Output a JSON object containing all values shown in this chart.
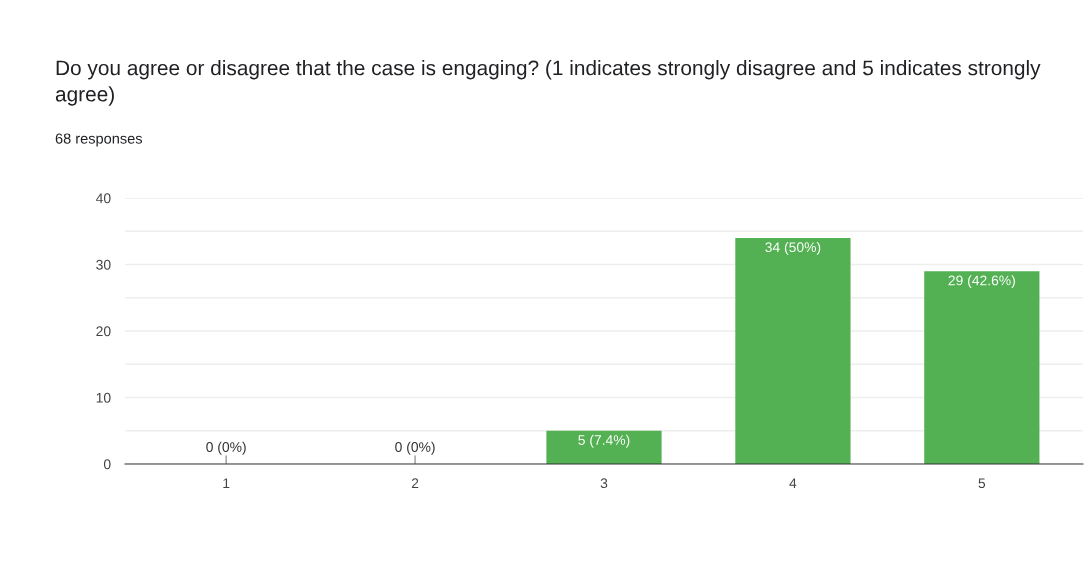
{
  "chart_data": {
    "type": "bar",
    "title": "Do you agree or disagree that the case is engaging? (1 indicates strongly disagree and 5 indicates strongly agree)",
    "subtitle": "68 responses",
    "categories": [
      "1",
      "2",
      "3",
      "4",
      "5"
    ],
    "values": [
      0,
      0,
      5,
      34,
      29
    ],
    "value_labels": [
      "0 (0%)",
      "0 (0%)",
      "5 (7.4%)",
      "34 (50%)",
      "29 (42.6%)"
    ],
    "color": "#53b153",
    "ylim": [
      0,
      40
    ],
    "yticks": [
      0,
      {
        "value": 5,
        "label": null
      },
      10,
      {
        "value": 15,
        "label": null
      },
      20,
      {
        "value": 25,
        "label": null
      },
      30,
      {
        "value": 35,
        "label": null
      },
      40
    ],
    "grid": "y"
  }
}
